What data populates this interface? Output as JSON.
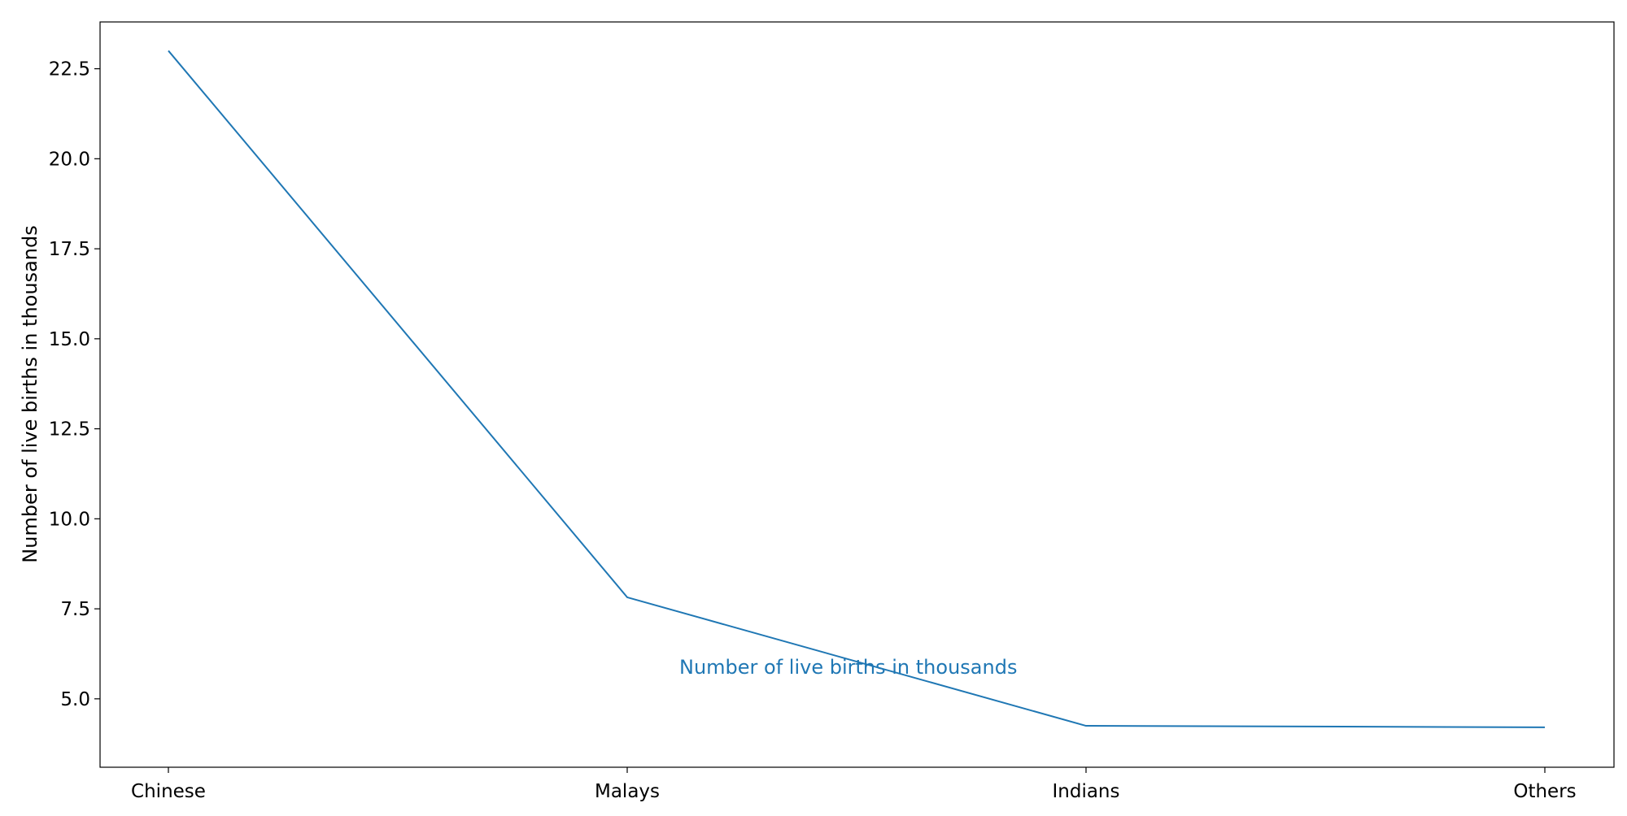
{
  "chart_data": {
    "type": "line",
    "categories": [
      "Chinese",
      "Malays",
      "Indians",
      "Others"
    ],
    "series": [
      {
        "name": "Number of live births in thousands",
        "values": [
          23.0,
          7.82,
          4.25,
          4.21
        ],
        "color": "#1f77b4"
      }
    ],
    "title": "",
    "xlabel": "",
    "ylabel": "Number of live births in thousands",
    "ylim": [
      3.1,
      23.8
    ],
    "yticks": [
      "5.0",
      "7.5",
      "10.0",
      "12.5",
      "15.0",
      "17.5",
      "20.0",
      "22.5"
    ],
    "grid": false,
    "legend": "none",
    "annotations": [
      {
        "text": "Number of live births in thousands",
        "category": "Malays",
        "y": 5.9
      }
    ]
  }
}
